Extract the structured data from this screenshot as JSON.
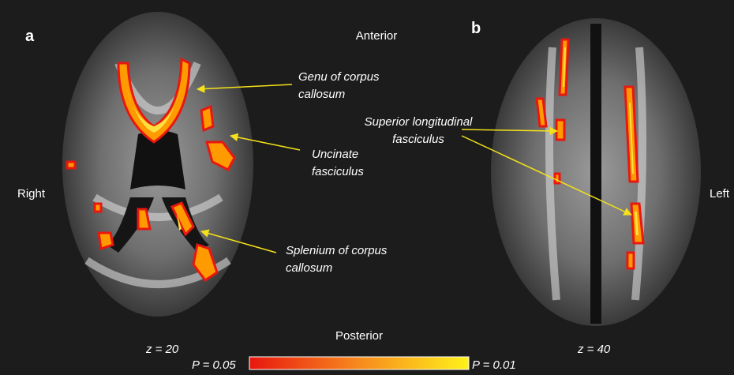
{
  "panels": [
    {
      "label": "a",
      "slice": "z = 20"
    },
    {
      "label": "b",
      "slice": "z = 40"
    }
  ],
  "orientation": {
    "anterior": "Anterior",
    "posterior": "Posterior",
    "right": "Right",
    "left": "Left"
  },
  "annotations": [
    {
      "lines": [
        "Genu of corpus",
        "callosum"
      ]
    },
    {
      "lines": [
        "Uncinate",
        "fasciculus"
      ]
    },
    {
      "lines": [
        "Superior longitudinal",
        "fasciculus"
      ]
    },
    {
      "lines": [
        "Splenium of corpus",
        "callosum"
      ]
    }
  ],
  "colorbar": {
    "min_label": "P = 0.05",
    "max_label": "P = 0.01"
  }
}
